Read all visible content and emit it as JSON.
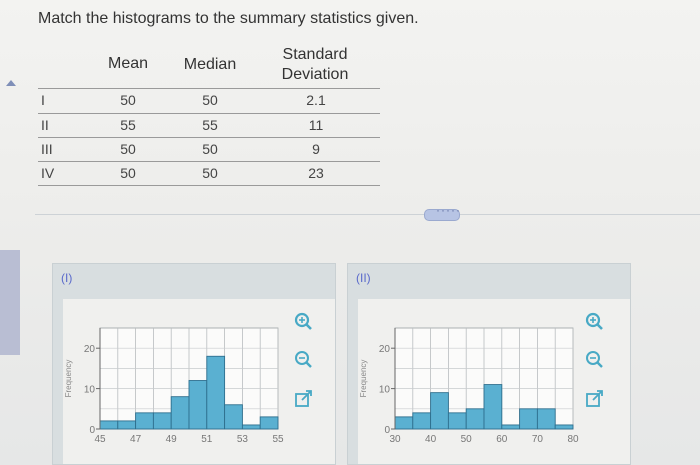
{
  "prompt": "Match the histograms to the summary statistics given.",
  "table": {
    "headers": {
      "mean": "Mean",
      "median": "Median",
      "sd_line1": "Standard",
      "sd_line2": "Deviation"
    },
    "rows": [
      {
        "label": "I",
        "mean": "50",
        "median": "50",
        "sd": "2.1"
      },
      {
        "label": "II",
        "mean": "55",
        "median": "55",
        "sd": "11"
      },
      {
        "label": "III",
        "mean": "50",
        "median": "50",
        "sd": "9"
      },
      {
        "label": "IV",
        "mean": "50",
        "median": "50",
        "sd": "23"
      }
    ]
  },
  "more_button": "·····",
  "panels": [
    {
      "caption": "(I)"
    },
    {
      "caption": "(II)"
    }
  ],
  "icons": [
    "zoom-in-icon",
    "zoom-out-icon",
    "open-new-window-icon"
  ],
  "colors": {
    "bar": "#5ab0d1",
    "bar_stroke": "#2e6f8e",
    "caption": "#5a6acb",
    "tool_icon": "#48a9c5"
  },
  "chart_data": [
    {
      "type": "bar",
      "title": "",
      "ylabel": "Frequency",
      "xlabel": "",
      "ylim": [
        0,
        25
      ],
      "yticks": [
        "0",
        "10",
        "20"
      ],
      "xtick_labels": [
        "45",
        "47",
        "49",
        "51",
        "53",
        "55"
      ],
      "bin_edges": [
        45,
        46,
        47,
        48,
        49,
        50,
        51,
        52,
        53,
        54,
        55
      ],
      "values": [
        2,
        2,
        4,
        4,
        8,
        12,
        18,
        6,
        1,
        3
      ],
      "grid": true
    },
    {
      "type": "bar",
      "title": "",
      "ylabel": "Frequency",
      "xlabel": "",
      "ylim": [
        0,
        25
      ],
      "yticks": [
        "0",
        "10",
        "20"
      ],
      "xtick_labels": [
        "30",
        "40",
        "50",
        "60",
        "70",
        "80"
      ],
      "bin_edges": [
        30,
        35,
        40,
        45,
        50,
        55,
        60,
        65,
        70,
        75,
        80
      ],
      "values": [
        3,
        4,
        9,
        4,
        5,
        11,
        1,
        5,
        5,
        1
      ],
      "grid": true
    }
  ]
}
